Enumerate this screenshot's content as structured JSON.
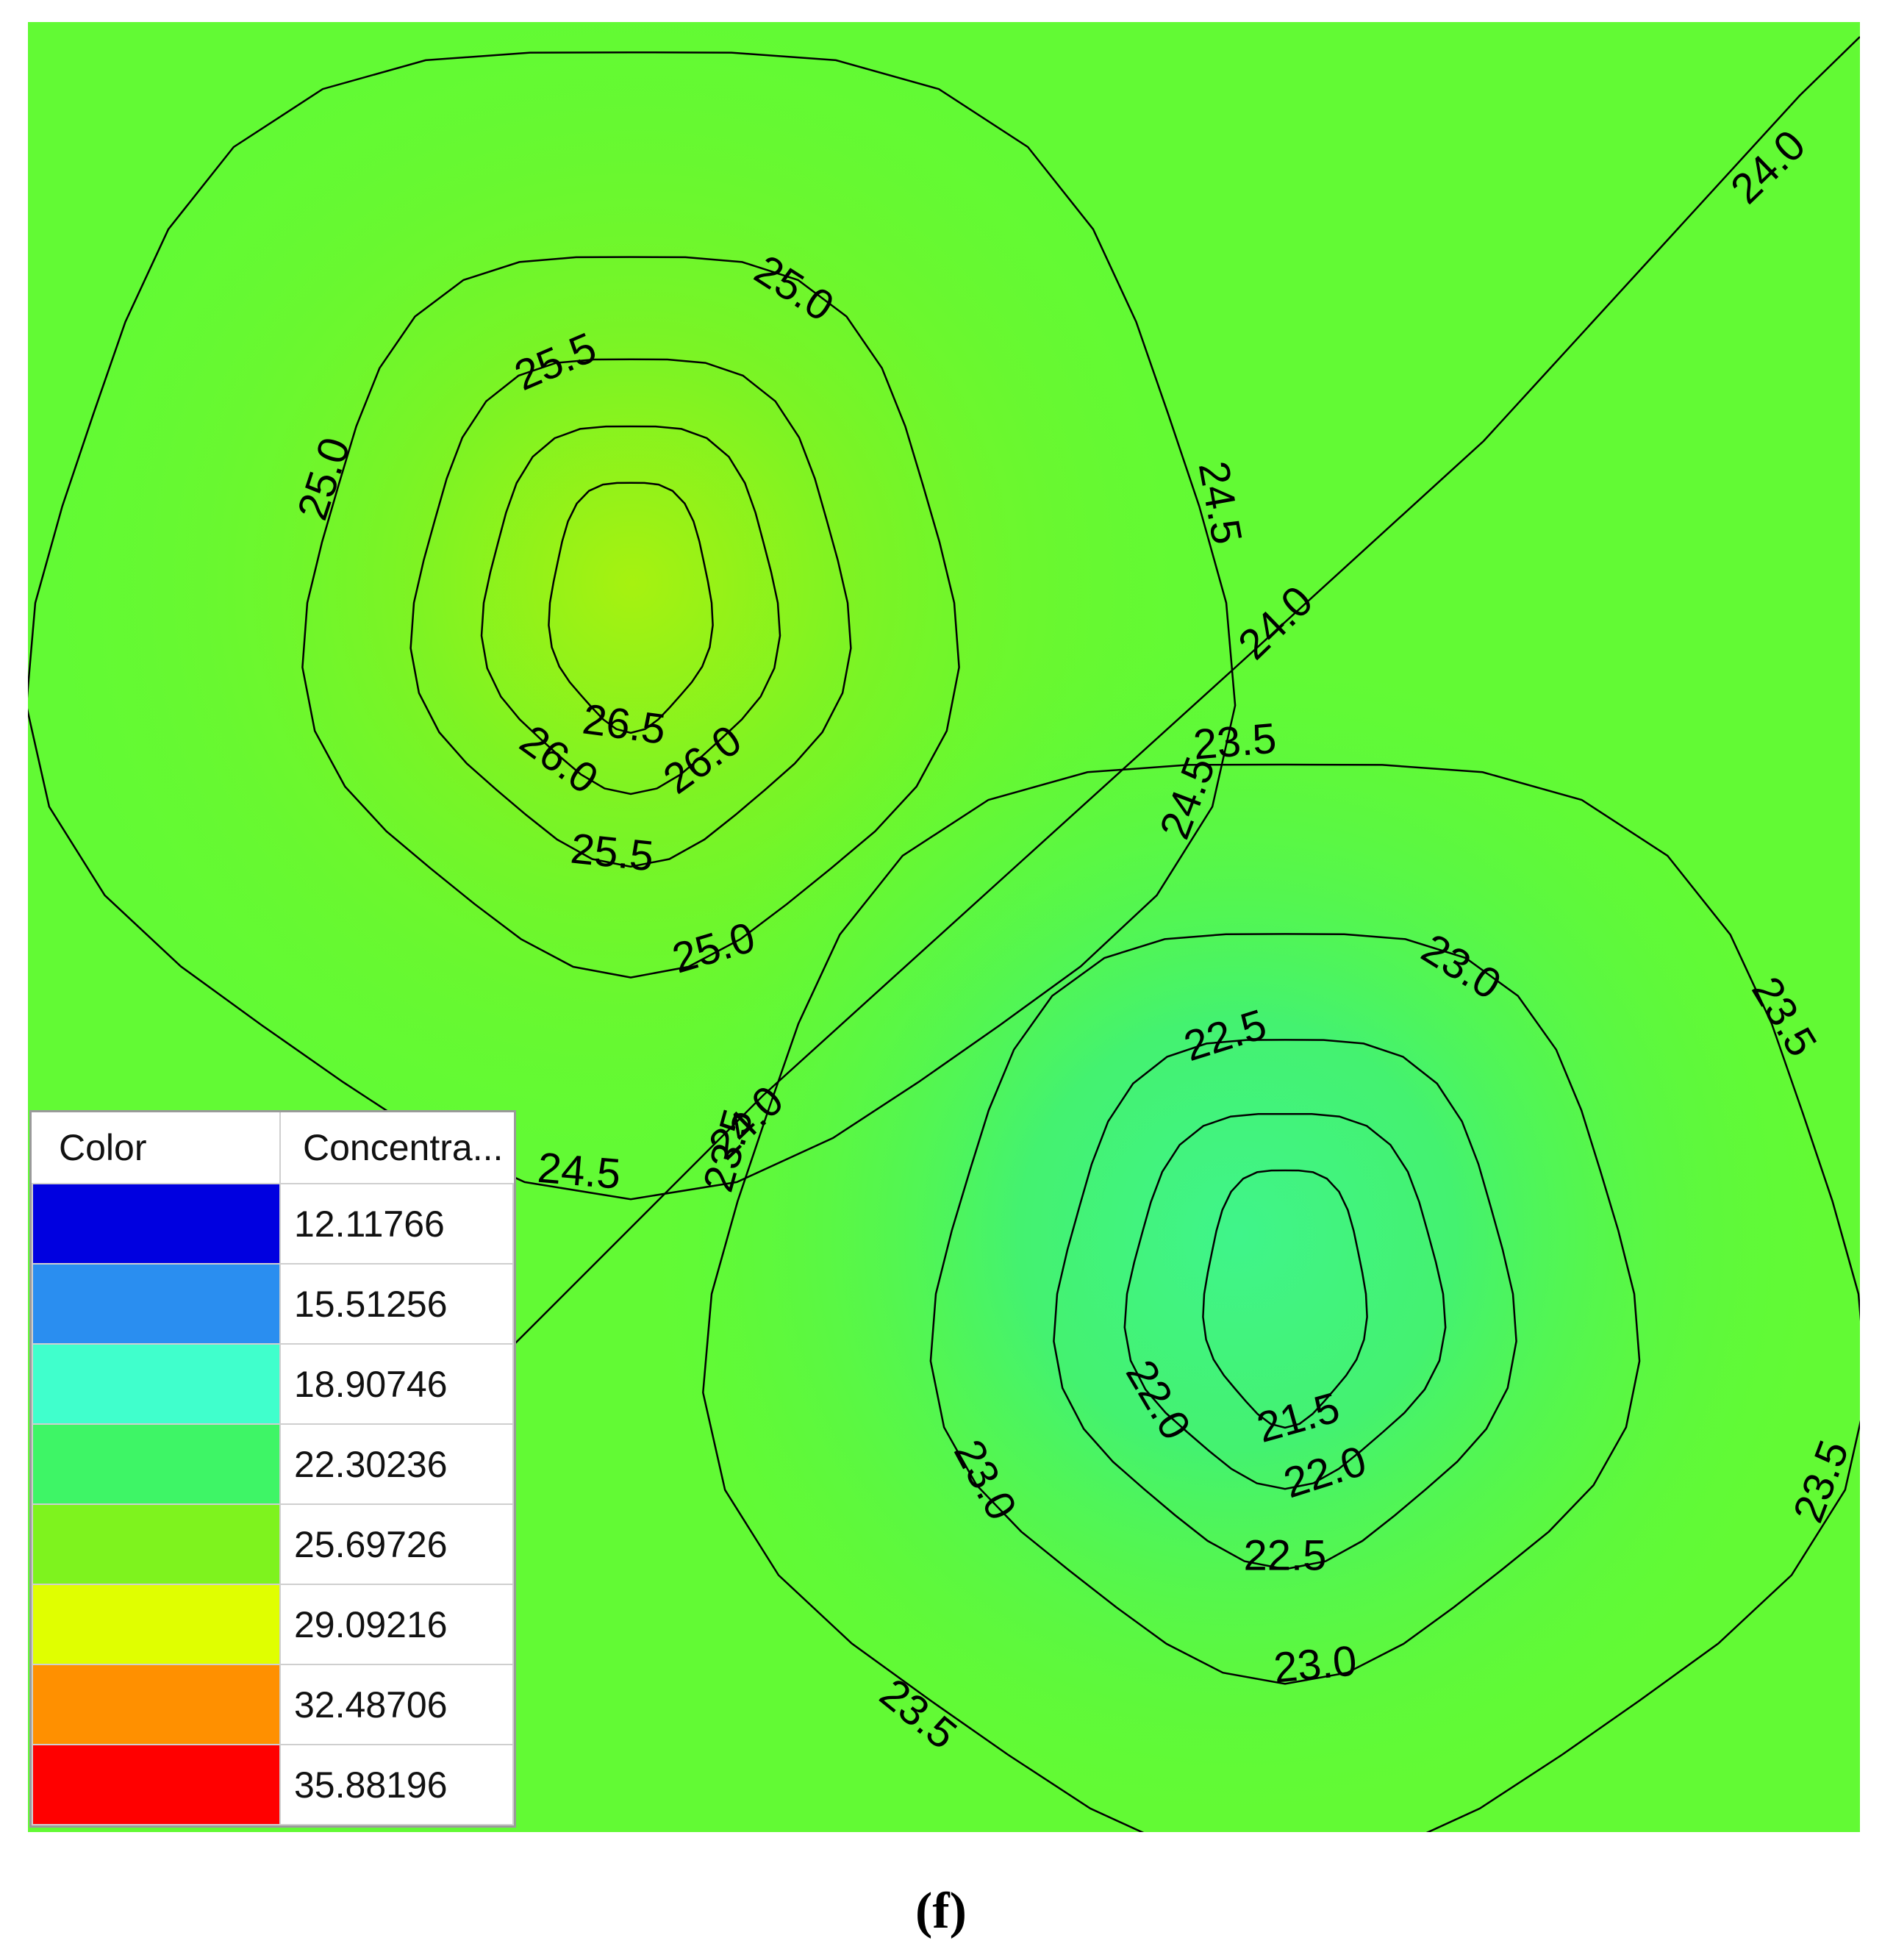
{
  "chart_data": {
    "type": "contour",
    "title": "",
    "xlabel": "",
    "ylabel": "",
    "contour_levels": [
      {
        "level": "21.5",
        "labels": [
          "21.5"
        ]
      },
      {
        "level": "22.0",
        "labels": [
          "22.0",
          "22.0"
        ]
      },
      {
        "level": "22.5",
        "labels": [
          "22.5",
          "22.5"
        ]
      },
      {
        "level": "23.0",
        "labels": [
          "23.0",
          "23.0",
          "23.0"
        ]
      },
      {
        "level": "23.5",
        "labels": [
          "23.5",
          "23.5",
          "23.5",
          "23.5",
          "23.5",
          "23.5"
        ]
      },
      {
        "level": "24.0",
        "labels": [
          "24.0",
          "24.0",
          "24.0"
        ]
      },
      {
        "level": "24.5",
        "labels": [
          "24.5",
          "24.5",
          "24.5",
          "24.5",
          "24.5"
        ]
      },
      {
        "level": "25.0",
        "labels": [
          "25.0",
          "25.0",
          "25.0"
        ]
      },
      {
        "level": "25.5",
        "labels": [
          "25.5",
          "25.5"
        ]
      },
      {
        "level": "26.0",
        "labels": [
          "26.0",
          "26.0"
        ]
      },
      {
        "level": "26.5",
        "labels": [
          "26.5"
        ]
      }
    ],
    "peak_region": {
      "approx_value": 27.0
    },
    "trough_region": {
      "approx_value": 21.0
    },
    "background_value": 24.0,
    "legend": {
      "headers": [
        "Color",
        "Concentra..."
      ],
      "entries": [
        {
          "color": "#0000e0",
          "value": "12.11766"
        },
        {
          "color": "#2a8ef0",
          "value": "15.51256"
        },
        {
          "color": "#40ffcc",
          "value": "18.90746"
        },
        {
          "color": "#3ef566",
          "value": "22.30236"
        },
        {
          "color": "#7ef31e",
          "value": "25.69726"
        },
        {
          "color": "#e0ff00",
          "value": "29.09216"
        },
        {
          "color": "#ff9000",
          "value": "32.48706"
        },
        {
          "color": "#ff0000",
          "value": "35.88196"
        }
      ],
      "placement": "bottom-left"
    }
  },
  "caption": "(f)"
}
